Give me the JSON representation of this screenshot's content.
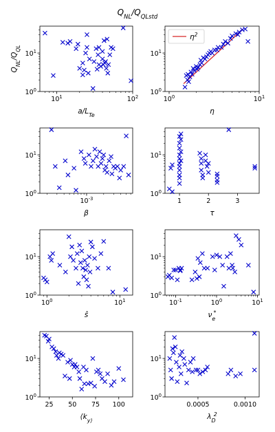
{
  "figure": {
    "suptitle_main": "Q",
    "suptitle_sub1": "NL",
    "suptitle_mid": "/Q",
    "suptitle_sub2": "QLstd"
  },
  "colors": {
    "marker": "#0000cc",
    "fit_line": "#d62728"
  },
  "chart_data": [
    {
      "type": "scatter",
      "id": "a_LTe",
      "xlabel": "a/L_Te",
      "ylabel": "Q_NL/Q_QL",
      "xscale": "log",
      "yscale": "log",
      "xlim": [
        6,
        100
      ],
      "ylim": [
        1,
        50
      ],
      "xticks": [
        10,
        100
      ],
      "xtick_labels": [
        "10^1",
        "10^2"
      ],
      "yticks": [
        1,
        10
      ],
      "ytick_labels": [
        "10^0",
        "10^1"
      ],
      "x": [
        7,
        9,
        12,
        14,
        15,
        18,
        19,
        20,
        22,
        22,
        23,
        24,
        25,
        25,
        26,
        27,
        30,
        31,
        33,
        34,
        35,
        36,
        36,
        38,
        40,
        40,
        41,
        42,
        43,
        44,
        45,
        46,
        47,
        48,
        50,
        52,
        55,
        75,
        95
      ],
      "y": [
        33,
        2.6,
        19,
        18,
        20,
        13,
        17,
        4,
        2.7,
        5.5,
        3.6,
        10,
        14,
        30,
        3,
        7,
        1.2,
        6,
        13,
        3.8,
        9,
        5,
        14,
        4.5,
        7,
        11,
        5,
        21,
        5.5,
        6,
        4,
        23,
        3,
        5,
        9,
        14,
        13,
        45,
        1.9
      ]
    },
    {
      "type": "scatter",
      "id": "eta",
      "xlabel": "η",
      "legend": [
        "η^2"
      ],
      "legend_loc": "upper left",
      "xscale": "log",
      "yscale": "log",
      "xlim": [
        0.9,
        10
      ],
      "ylim": [
        1,
        50
      ],
      "xticks": [
        1,
        10
      ],
      "xtick_labels": [
        "10^0",
        "10^1"
      ],
      "yticks": [
        1,
        10
      ],
      "ytick_labels": [
        "10^0",
        "10^1"
      ],
      "fit_line": {
        "x": [
          1.45,
          6.6
        ],
        "y": [
          1.6,
          42
        ]
      },
      "x": [
        1.5,
        1.55,
        1.6,
        1.62,
        1.65,
        1.7,
        1.75,
        1.8,
        1.85,
        1.9,
        2.0,
        2.05,
        2.1,
        2.2,
        2.25,
        2.3,
        2.4,
        2.5,
        2.6,
        2.7,
        2.8,
        2.9,
        3.0,
        3.2,
        3.4,
        3.5,
        3.8,
        4.0,
        4.2,
        4.5,
        4.8,
        5.0,
        5.5,
        5.8,
        6.0,
        6.5,
        7.0,
        7.5
      ],
      "y": [
        1.3,
        2.6,
        2.0,
        2.8,
        1.8,
        2.4,
        3.2,
        2.8,
        4.0,
        3.5,
        4.5,
        3.8,
        4.2,
        5.0,
        6.5,
        5.5,
        7.5,
        7.0,
        8.0,
        9.0,
        10,
        11,
        10,
        12,
        12,
        14,
        14,
        17,
        20,
        18,
        24,
        28,
        32,
        30,
        35,
        40,
        42,
        20
      ]
    },
    {
      "type": "scatter",
      "id": "beta",
      "xlabel": "β",
      "xscale": "log",
      "yscale": "log",
      "xlim": [
        0.00015,
        0.0065
      ],
      "ylim": [
        1,
        50
      ],
      "xticks": [
        0.001
      ],
      "xtick_labels": [
        "10^-3"
      ],
      "yticks": [
        1,
        10
      ],
      "ytick_labels": [
        "10^0",
        "10^1"
      ],
      "x": [
        0.00024,
        0.00028,
        0.00033,
        0.00042,
        0.00047,
        0.0006,
        0.00065,
        0.0008,
        0.0009,
        0.00095,
        0.0011,
        0.0012,
        0.0013,
        0.0014,
        0.0015,
        0.0016,
        0.0017,
        0.0018,
        0.0019,
        0.002,
        0.0021,
        0.0022,
        0.0023,
        0.0025,
        0.0027,
        0.0028,
        0.003,
        0.0032,
        0.0035,
        0.0038,
        0.004,
        0.0045,
        0.005,
        0.0055
      ],
      "y": [
        45,
        5,
        1.4,
        7,
        3,
        4.5,
        1.2,
        12,
        8,
        6,
        10,
        5,
        7,
        14,
        9,
        5,
        12,
        6,
        8,
        10,
        4,
        5,
        3.5,
        7,
        9,
        3.2,
        5,
        4.5,
        5,
        2.5,
        4,
        5,
        31,
        3
      ]
    },
    {
      "type": "scatter",
      "id": "tau",
      "xlabel": "τ",
      "xscale": "linear",
      "yscale": "log",
      "xlim": [
        0.5,
        3.75
      ],
      "ylim": [
        1,
        50
      ],
      "xticks": [
        1,
        2,
        3
      ],
      "xtick_labels": [
        "1",
        "2",
        "3"
      ],
      "yticks": [
        1,
        10
      ],
      "ytick_labels": [
        "10^0",
        "10^1"
      ],
      "x": [
        0.65,
        0.7,
        0.75,
        0.75,
        1.0,
        1.0,
        1.0,
        1.0,
        1.0,
        1.0,
        1.0,
        1.0,
        1.0,
        1.0,
        1.0,
        1.05,
        1.05,
        1.05,
        1.05,
        1.7,
        1.75,
        1.75,
        1.75,
        1.8,
        1.8,
        1.9,
        1.9,
        1.95,
        2.0,
        2.0,
        2.3,
        2.3,
        2.3,
        2.3,
        2.7,
        3.6,
        3.6
      ],
      "y": [
        1.3,
        4.5,
        5.5,
        1.1,
        30,
        20,
        15,
        10,
        8,
        6,
        5,
        4,
        3,
        2.5,
        1.8,
        35,
        25,
        12,
        7,
        11,
        8,
        6,
        4,
        3,
        2.5,
        10,
        7,
        5,
        6,
        3.5,
        2.2,
        2.8,
        3.2,
        1.9,
        45,
        4.5,
        5
      ]
    },
    {
      "type": "scatter",
      "id": "shat",
      "xlabel": "ŝ",
      "xscale": "log",
      "yscale": "log",
      "xlim": [
        0.8,
        15
      ],
      "ylim": [
        1,
        50
      ],
      "xticks": [
        1,
        10
      ],
      "xtick_labels": [
        "10^0",
        "10^1"
      ],
      "yticks": [
        1,
        10
      ],
      "ytick_labels": [
        "10^0",
        "10^1"
      ],
      "x": [
        0.9,
        0.95,
        1.0,
        1.1,
        1.15,
        1.2,
        1.5,
        1.8,
        2.0,
        2.1,
        2.2,
        2.3,
        2.5,
        2.6,
        2.7,
        2.8,
        2.9,
        3.0,
        3.1,
        3.2,
        3.3,
        3.4,
        3.5,
        3.6,
        3.7,
        3.8,
        3.9,
        4.0,
        4.2,
        4.5,
        5.0,
        5.5,
        6.0,
        7.0,
        8.0,
        12.0
      ],
      "y": [
        2.8,
        2.5,
        2.2,
        10,
        8,
        12,
        6,
        4,
        33,
        10,
        18,
        8,
        5,
        12,
        2,
        20,
        7,
        14,
        5,
        3,
        8,
        4.5,
        2.5,
        6,
        1.7,
        10,
        4,
        24,
        18,
        9,
        5,
        12,
        25,
        5,
        1.2,
        1.4
      ]
    },
    {
      "type": "scatter",
      "id": "nu_e",
      "xlabel": "ν_e^*",
      "xscale": "log",
      "yscale": "log",
      "xlim": [
        0.055,
        11
      ],
      "ylim": [
        1,
        50
      ],
      "xticks": [
        0.1,
        1,
        10
      ],
      "xtick_labels": [
        "10^-1",
        "10^0",
        "10^1"
      ],
      "yticks": [
        1,
        10
      ],
      "ytick_labels": [
        "10^0",
        "10^1"
      ],
      "x": [
        0.065,
        0.07,
        0.08,
        0.09,
        0.1,
        0.11,
        0.12,
        0.13,
        0.13,
        0.14,
        0.25,
        0.3,
        0.33,
        0.35,
        0.38,
        0.4,
        0.45,
        0.5,
        0.6,
        0.8,
        0.9,
        1.0,
        1.2,
        1.4,
        1.5,
        1.8,
        2.0,
        2.2,
        2.4,
        2.5,
        2.8,
        3.0,
        3.5,
        4.0,
        6.0,
        8.0
      ],
      "y": [
        3,
        3.3,
        2.8,
        4.5,
        4.5,
        2.5,
        5,
        4.5,
        4.3,
        5,
        2.5,
        4,
        2.7,
        9,
        3,
        7,
        12,
        5,
        5,
        10,
        4.5,
        11,
        10,
        6,
        1.7,
        10,
        5,
        12,
        6,
        5,
        4,
        35,
        28,
        20,
        6,
        1.2
      ]
    },
    {
      "type": "scatter",
      "id": "ky",
      "xlabel": "⟨k_y⟩",
      "xscale": "linear",
      "yscale": "log",
      "xlim": [
        15,
        115
      ],
      "ylim": [
        1,
        50
      ],
      "xticks": [
        25,
        50,
        75,
        100
      ],
      "xtick_labels": [
        "25",
        "50",
        "75",
        "100"
      ],
      "yticks": [
        1,
        10
      ],
      "ytick_labels": [
        "10^0",
        "10^1"
      ],
      "x": [
        20,
        22,
        24,
        25,
        28,
        30,
        32,
        33,
        35,
        36,
        38,
        40,
        42,
        45,
        47,
        48,
        50,
        52,
        53,
        55,
        57,
        58,
        60,
        62,
        63,
        65,
        67,
        70,
        72,
        74,
        76,
        78,
        80,
        82,
        85,
        88,
        92,
        95,
        100,
        105
      ],
      "y": [
        40,
        38,
        28,
        32,
        20,
        18,
        15,
        12,
        10,
        14,
        13,
        12,
        3.5,
        8,
        3,
        9,
        7,
        6,
        7,
        6,
        4.5,
        3,
        1.6,
        6,
        2.2,
        5,
        2.2,
        2.3,
        10,
        1.9,
        4.5,
        5,
        4,
        3,
        2.5,
        4,
        2,
        2.5,
        5.5,
        2.8
      ]
    },
    {
      "type": "scatter",
      "id": "lambdaD",
      "xlabel": "λ_D^2",
      "xscale": "linear",
      "yscale": "log",
      "xlim": [
        0.00015,
        0.00115
      ],
      "ylim": [
        1,
        50
      ],
      "xticks": [
        0.0005,
        0.001
      ],
      "xtick_labels": [
        "0.0005",
        "0.0010"
      ],
      "yticks": [
        1,
        10
      ],
      "ytick_labels": [
        "10^0",
        "10^1"
      ],
      "x": [
        0.0002,
        0.00021,
        0.00022,
        0.00023,
        0.00024,
        0.00025,
        0.00026,
        0.00027,
        0.00028,
        0.0003,
        0.00031,
        0.00032,
        0.00033,
        0.00035,
        0.00036,
        0.00038,
        0.0004,
        0.00042,
        0.00044,
        0.00045,
        0.00048,
        0.0005,
        0.00052,
        0.00055,
        0.00058,
        0.0006,
        0.00082,
        0.00085,
        0.0009,
        0.00095,
        0.0011,
        0.0011
      ],
      "y": [
        10,
        5,
        3,
        18,
        14,
        35,
        20,
        8,
        2.5,
        6,
        12,
        4,
        15,
        10,
        7,
        2.3,
        5,
        8,
        4.5,
        10,
        5,
        5,
        4,
        4.5,
        5,
        6,
        4,
        5,
        3.5,
        4,
        45,
        5
      ]
    }
  ]
}
